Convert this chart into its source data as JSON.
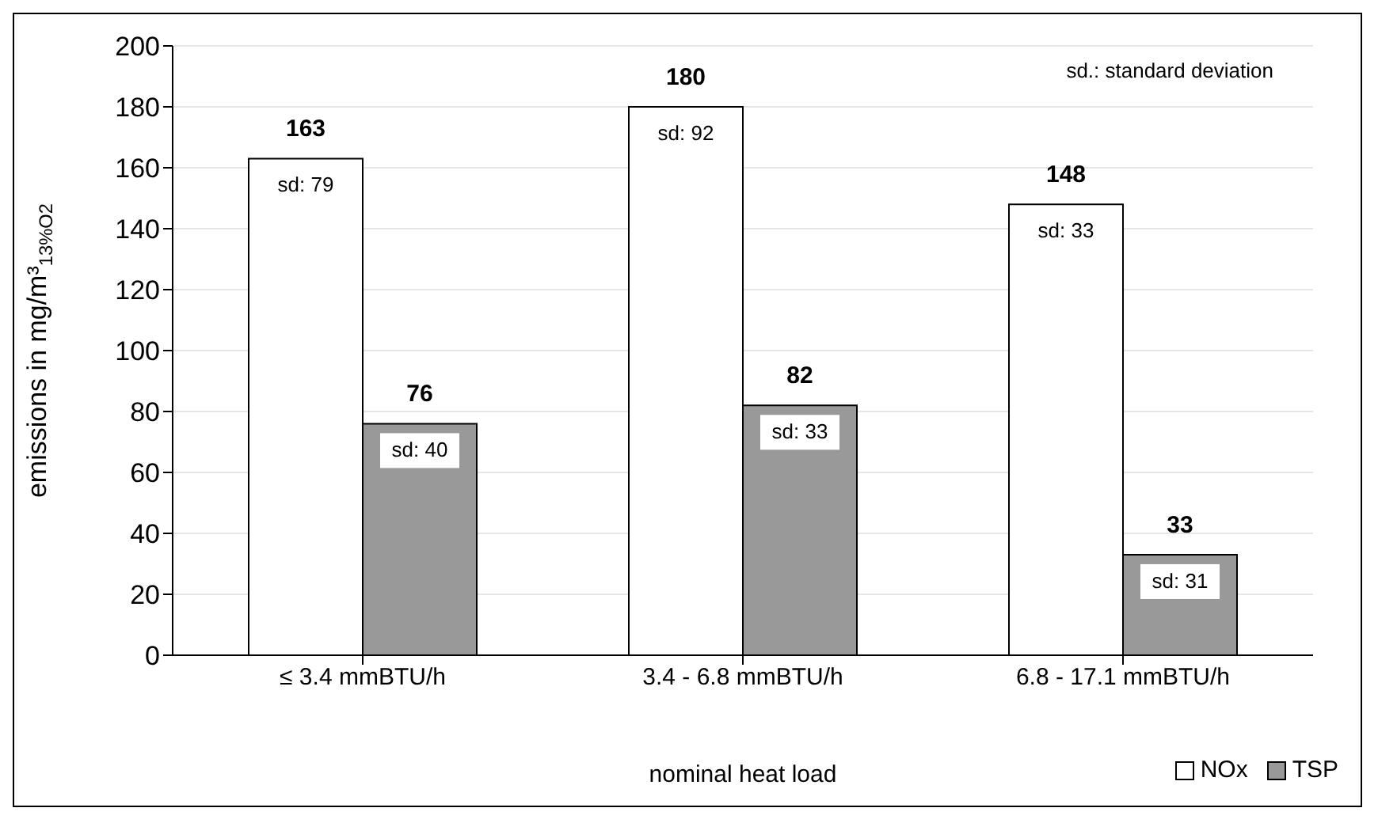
{
  "chart_data": {
    "type": "bar",
    "xlabel": "nominal heat load",
    "ylabel": "emissions in mg/m³$_{13%O2}$",
    "categories": [
      "≤ 3.4 mmBTU/h",
      "3.4 - 6.8 mmBTU/h",
      "6.8 - 17.1 mmBTU/h"
    ],
    "series": [
      {
        "name": "NOx",
        "color": "#ffffff",
        "values": [
          163,
          180,
          148
        ]
      },
      {
        "name": "TSP",
        "color": "#999999",
        "values": [
          76,
          82,
          33
        ]
      }
    ],
    "ylim": [
      0,
      200
    ],
    "yticks": [
      0,
      20,
      40,
      60,
      80,
      100,
      120,
      140,
      160,
      180,
      200
    ],
    "grid": "y",
    "legend": "bottom right",
    "data_labels": true,
    "annotations": [
      "sd.: standard deviation",
      {
        "text": "sd: 79",
        "x": "≤ 3.4 mmBTU/h",
        "y": 163
      },
      {
        "text": "sd: 40",
        "x": "≤ 3.4 mmBTU/h",
        "y": 76
      },
      {
        "text": "sd: 92",
        "x": "3.4 - 6.8 mmBTU/h",
        "y": 180
      },
      {
        "text": "sd: 33",
        "x": "3.4 - 6.8 mmBTU/h",
        "y": 82
      },
      {
        "text": "sd: 33",
        "x": "6.8 - 17.1 mmBTU/h",
        "y": 148
      },
      {
        "text": "sd: 31",
        "x": "6.8 - 17.1 mmBTU/h",
        "y": 33
      }
    ]
  }
}
